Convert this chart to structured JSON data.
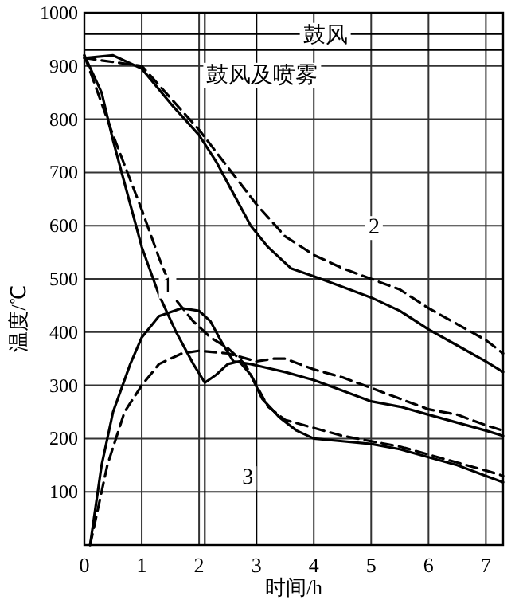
{
  "chart_data": {
    "type": "line",
    "xlabel": "时间/h",
    "ylabel": "温度/℃",
    "xlim": [
      0,
      7.3
    ],
    "ylim": [
      0,
      1000
    ],
    "xticks": [
      0,
      1,
      2,
      3,
      4,
      5,
      6,
      7
    ],
    "yticks": [
      {
        "value": 0,
        "label": null
      },
      100,
      200,
      300,
      400,
      500,
      600,
      700,
      800,
      900,
      1000
    ],
    "grid": true,
    "series": [
      {
        "color": "#000000",
        "line_style": "solid",
        "x": [
          0,
          0.5,
          1,
          1.5,
          2,
          2.3,
          2.6,
          2.9,
          3.2,
          3.6,
          4,
          4.5,
          5,
          5.5,
          6,
          6.5,
          7,
          7.3
        ],
        "values": [
          915,
          920,
          895,
          830,
          770,
          720,
          660,
          600,
          560,
          520,
          505,
          485,
          465,
          440,
          405,
          375,
          345,
          325
        ]
      },
      {
        "color": "#000000",
        "line_style": "dashed",
        "x": [
          0,
          1,
          1.5,
          2,
          2.5,
          3,
          3.5,
          4,
          4.5,
          5,
          5.5,
          6,
          6.5,
          7,
          7.3
        ],
        "values": [
          915,
          900,
          840,
          780,
          710,
          640,
          580,
          545,
          520,
          500,
          480,
          445,
          415,
          385,
          360
        ]
      },
      {
        "color": "#000000",
        "line_style": "solid",
        "x": [
          0,
          0.3,
          0.5,
          0.7,
          1,
          1.3,
          1.6,
          1.9,
          2.1,
          2.3,
          2.5,
          2.7,
          2.9,
          3.1,
          3.4,
          3.7,
          4,
          4.5,
          5,
          5.5,
          6,
          6.5,
          7,
          7.3
        ],
        "values": [
          920,
          850,
          760,
          680,
          560,
          470,
          400,
          340,
          305,
          320,
          340,
          345,
          320,
          275,
          240,
          215,
          200,
          195,
          190,
          180,
          165,
          150,
          130,
          118
        ]
      },
      {
        "color": "#000000",
        "line_style": "dashed",
        "x": [
          0,
          0.5,
          1,
          1.3,
          1.6,
          1.9,
          2.2,
          2.5,
          2.8,
          3,
          3.2,
          3.5,
          4,
          4.5,
          5,
          5.5,
          6,
          6.5,
          7,
          7.3
        ],
        "values": [
          920,
          770,
          630,
          540,
          460,
          420,
          390,
          370,
          340,
          300,
          260,
          235,
          220,
          205,
          195,
          185,
          170,
          155,
          140,
          130
        ]
      },
      {
        "color": "#000000",
        "line_style": "solid",
        "x": [
          0.1,
          0.3,
          0.5,
          0.8,
          1,
          1.3,
          1.7,
          2,
          2.2,
          2.4,
          2.6,
          2.9,
          3.1,
          3.5,
          4,
          4.5,
          5,
          5.5,
          6,
          6.5,
          7,
          7.3
        ],
        "values": [
          0,
          150,
          250,
          340,
          390,
          430,
          445,
          440,
          420,
          380,
          345,
          340,
          335,
          325,
          310,
          290,
          270,
          260,
          245,
          230,
          215,
          205
        ]
      },
      {
        "color": "#000000",
        "line_style": "dashed",
        "x": [
          0.1,
          0.4,
          0.7,
          1,
          1.3,
          1.7,
          2,
          2.5,
          3,
          3.3,
          3.5,
          4,
          4.5,
          5,
          5.5,
          6,
          6.5,
          7,
          7.3
        ],
        "values": [
          0,
          150,
          250,
          300,
          340,
          360,
          365,
          360,
          345,
          350,
          350,
          330,
          315,
          295,
          275,
          255,
          245,
          225,
          215
        ]
      }
    ],
    "ref_lines": [
      {
        "axis": "x",
        "value": 2.1,
        "color": "#000000"
      },
      {
        "axis": "x",
        "value": 3.0,
        "color": "#000000"
      },
      {
        "axis": "y",
        "value": 960,
        "color": "#000000"
      },
      {
        "axis": "y",
        "value": 930,
        "color": "#000000"
      }
    ],
    "annotations": [
      {
        "text": "鼓风",
        "x": 4.2,
        "y": 960
      },
      {
        "text": "鼓风及喷雾",
        "x": 3.1,
        "y": 885
      },
      {
        "text": "1",
        "x": 1.45,
        "y": 490
      },
      {
        "text": "2",
        "x": 5.05,
        "y": 600
      },
      {
        "text": "3",
        "x": 2.85,
        "y": 130
      }
    ]
  }
}
